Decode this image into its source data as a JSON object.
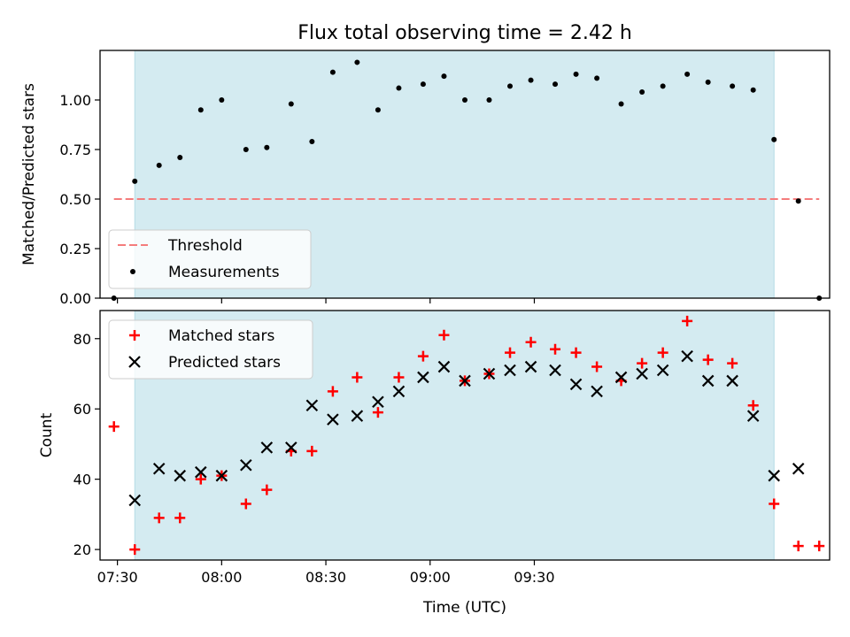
{
  "figure": {
    "title": "Flux total observing time = 2.42 h",
    "xlabel": "Time (UTC)"
  },
  "chart_data": [
    {
      "type": "scatter",
      "ylabel": "Matched/Predicted stars",
      "ylim": [
        0,
        1.25
      ],
      "yticks": [
        "0.00",
        "0.25",
        "0.50",
        "0.75",
        "1.00"
      ],
      "xlim": [
        445,
        655
      ],
      "x_unit": "minutes after 00:00 UTC",
      "observing_window": [
        455,
        639
      ],
      "observing_window_color": "#d4ebf1",
      "threshold": {
        "name": "Threshold",
        "value": 0.5,
        "x_range": [
          449,
          652
        ],
        "color": "#f47c7c"
      },
      "legend": {
        "placement": "lower-left",
        "entries": [
          "Threshold",
          "Measurements"
        ]
      },
      "series": [
        {
          "name": "Measurements",
          "color": "#000000",
          "x": [
            449,
            455,
            462,
            468,
            474,
            480,
            487,
            493,
            500,
            506,
            512,
            519,
            525,
            531,
            538,
            544,
            550,
            557,
            563,
            569,
            576,
            582,
            588,
            595,
            601,
            607,
            614,
            620,
            627,
            633,
            639,
            646,
            652
          ],
          "y": [
            0.0,
            0.59,
            0.67,
            0.71,
            0.95,
            1.0,
            0.75,
            0.76,
            0.98,
            0.79,
            1.14,
            1.19,
            0.95,
            1.06,
            1.08,
            1.12,
            1.0,
            1.0,
            1.07,
            1.1,
            1.08,
            1.13,
            1.11,
            0.98,
            1.04,
            1.07,
            1.13,
            1.09,
            1.07,
            1.05,
            0.8,
            0.49,
            0.0
          ]
        }
      ]
    },
    {
      "type": "scatter",
      "ylabel": "Count",
      "ylim": [
        17,
        88
      ],
      "yticks": [
        "20",
        "40",
        "60",
        "80"
      ],
      "xlim": [
        445,
        655
      ],
      "x_unit": "minutes after 00:00 UTC",
      "xticks": [
        {
          "value": 450,
          "label": "07:30"
        },
        {
          "value": 480,
          "label": "08:00"
        },
        {
          "value": 510,
          "label": "08:30"
        },
        {
          "value": 540,
          "label": "09:00"
        },
        {
          "value": 570,
          "label": "09:30"
        }
      ],
      "observing_window": [
        455,
        639
      ],
      "observing_window_color": "#d4ebf1",
      "legend": {
        "placement": "upper-left",
        "entries": [
          "Matched stars",
          "Predicted stars"
        ]
      },
      "series": [
        {
          "name": "Matched stars",
          "marker": "plus",
          "color": "#ff0000",
          "x": [
            449,
            455,
            462,
            468,
            474,
            480,
            487,
            493,
            500,
            506,
            512,
            519,
            525,
            531,
            538,
            544,
            550,
            557,
            563,
            569,
            576,
            582,
            588,
            595,
            601,
            607,
            614,
            620,
            627,
            633,
            639,
            646,
            652
          ],
          "y": [
            55,
            20,
            29,
            29,
            40,
            41,
            33,
            37,
            48,
            48,
            65,
            69,
            59,
            69,
            75,
            81,
            68,
            70,
            76,
            79,
            77,
            76,
            72,
            68,
            73,
            76,
            85,
            74,
            73,
            61,
            33,
            21,
            21
          ]
        },
        {
          "name": "Predicted stars",
          "marker": "x",
          "color": "#000000",
          "x": [
            455,
            462,
            468,
            474,
            480,
            487,
            493,
            500,
            506,
            512,
            519,
            525,
            531,
            538,
            544,
            550,
            557,
            563,
            569,
            576,
            582,
            588,
            595,
            601,
            607,
            614,
            620,
            627,
            633,
            639,
            646
          ],
          "y": [
            34,
            43,
            41,
            42,
            41,
            44,
            49,
            49,
            61,
            57,
            58,
            62,
            65,
            69,
            72,
            68,
            70,
            71,
            72,
            71,
            67,
            65,
            69,
            70,
            71,
            75,
            68,
            68,
            58,
            41,
            43
          ]
        }
      ]
    }
  ]
}
